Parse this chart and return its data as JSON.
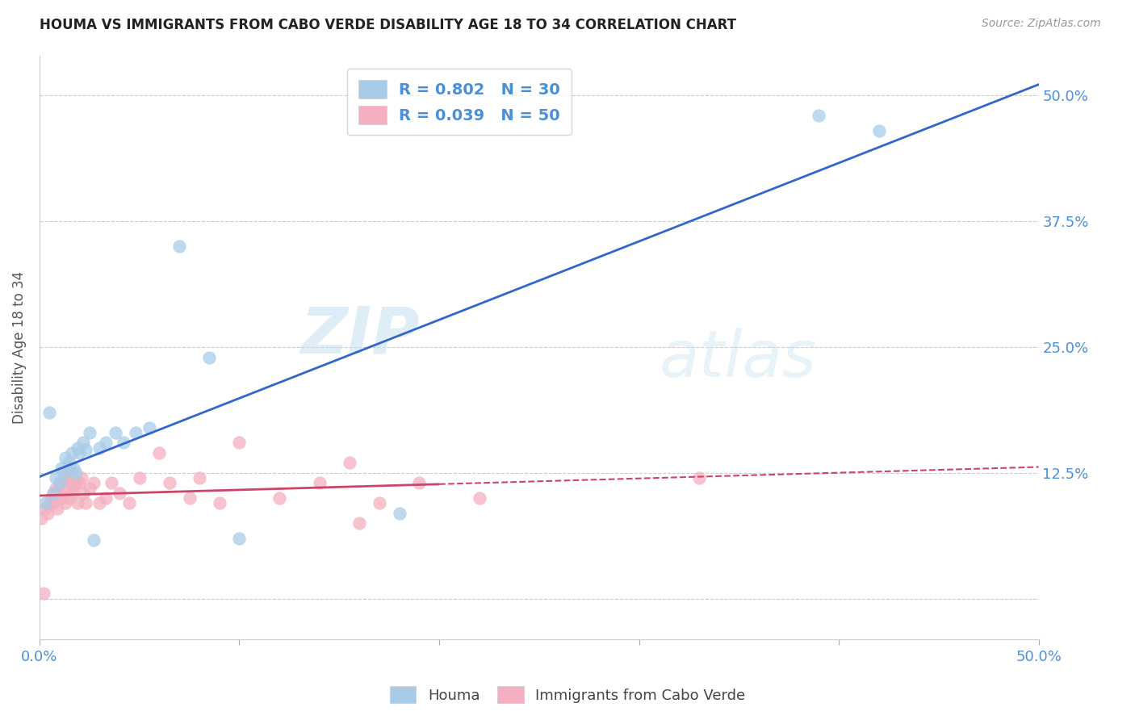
{
  "title": "HOUMA VS IMMIGRANTS FROM CABO VERDE DISABILITY AGE 18 TO 34 CORRELATION CHART",
  "source": "Source: ZipAtlas.com",
  "tick_color": "#4a90d9",
  "ylabel": "Disability Age 18 to 34",
  "xlim": [
    0.0,
    0.5
  ],
  "ylim": [
    -0.04,
    0.54
  ],
  "houma_R": 0.802,
  "houma_N": 30,
  "cabo_R": 0.039,
  "cabo_N": 50,
  "houma_color": "#a8cce8",
  "cabo_color": "#f4afc0",
  "trend_houma_color": "#3366cc",
  "trend_cabo_color": "#cc4466",
  "watermark_zip": "ZIP",
  "watermark_atlas": "atlas",
  "background_color": "#ffffff",
  "grid_color": "#cccccc",
  "houma_scatter_x": [
    0.003,
    0.005,
    0.007,
    0.008,
    0.01,
    0.011,
    0.012,
    0.013,
    0.015,
    0.016,
    0.017,
    0.018,
    0.019,
    0.02,
    0.022,
    0.023,
    0.025,
    0.027,
    0.03,
    0.033,
    0.038,
    0.042,
    0.048,
    0.055,
    0.07,
    0.085,
    0.1,
    0.18,
    0.39,
    0.42
  ],
  "houma_scatter_y": [
    0.095,
    0.185,
    0.105,
    0.12,
    0.115,
    0.13,
    0.125,
    0.14,
    0.135,
    0.145,
    0.13,
    0.125,
    0.15,
    0.145,
    0.155,
    0.148,
    0.165,
    0.058,
    0.15,
    0.155,
    0.165,
    0.155,
    0.165,
    0.17,
    0.35,
    0.24,
    0.06,
    0.085,
    0.48,
    0.465
  ],
  "cabo_scatter_x": [
    0.001,
    0.002,
    0.003,
    0.004,
    0.005,
    0.006,
    0.007,
    0.007,
    0.008,
    0.009,
    0.01,
    0.01,
    0.011,
    0.012,
    0.013,
    0.013,
    0.014,
    0.015,
    0.015,
    0.016,
    0.017,
    0.018,
    0.019,
    0.02,
    0.021,
    0.022,
    0.023,
    0.025,
    0.027,
    0.03,
    0.033,
    0.036,
    0.04,
    0.045,
    0.05,
    0.06,
    0.065,
    0.075,
    0.08,
    0.09,
    0.1,
    0.12,
    0.14,
    0.155,
    0.16,
    0.17,
    0.19,
    0.22,
    0.33,
    0.015
  ],
  "cabo_scatter_y": [
    0.08,
    0.005,
    0.09,
    0.085,
    0.095,
    0.1,
    0.105,
    0.095,
    0.11,
    0.09,
    0.105,
    0.115,
    0.1,
    0.12,
    0.095,
    0.11,
    0.115,
    0.1,
    0.125,
    0.105,
    0.11,
    0.115,
    0.095,
    0.115,
    0.12,
    0.105,
    0.095,
    0.11,
    0.115,
    0.095,
    0.1,
    0.115,
    0.105,
    0.095,
    0.12,
    0.145,
    0.115,
    0.1,
    0.12,
    0.095,
    0.155,
    0.1,
    0.115,
    0.135,
    0.075,
    0.095,
    0.115,
    0.1,
    0.12,
    0.13
  ]
}
